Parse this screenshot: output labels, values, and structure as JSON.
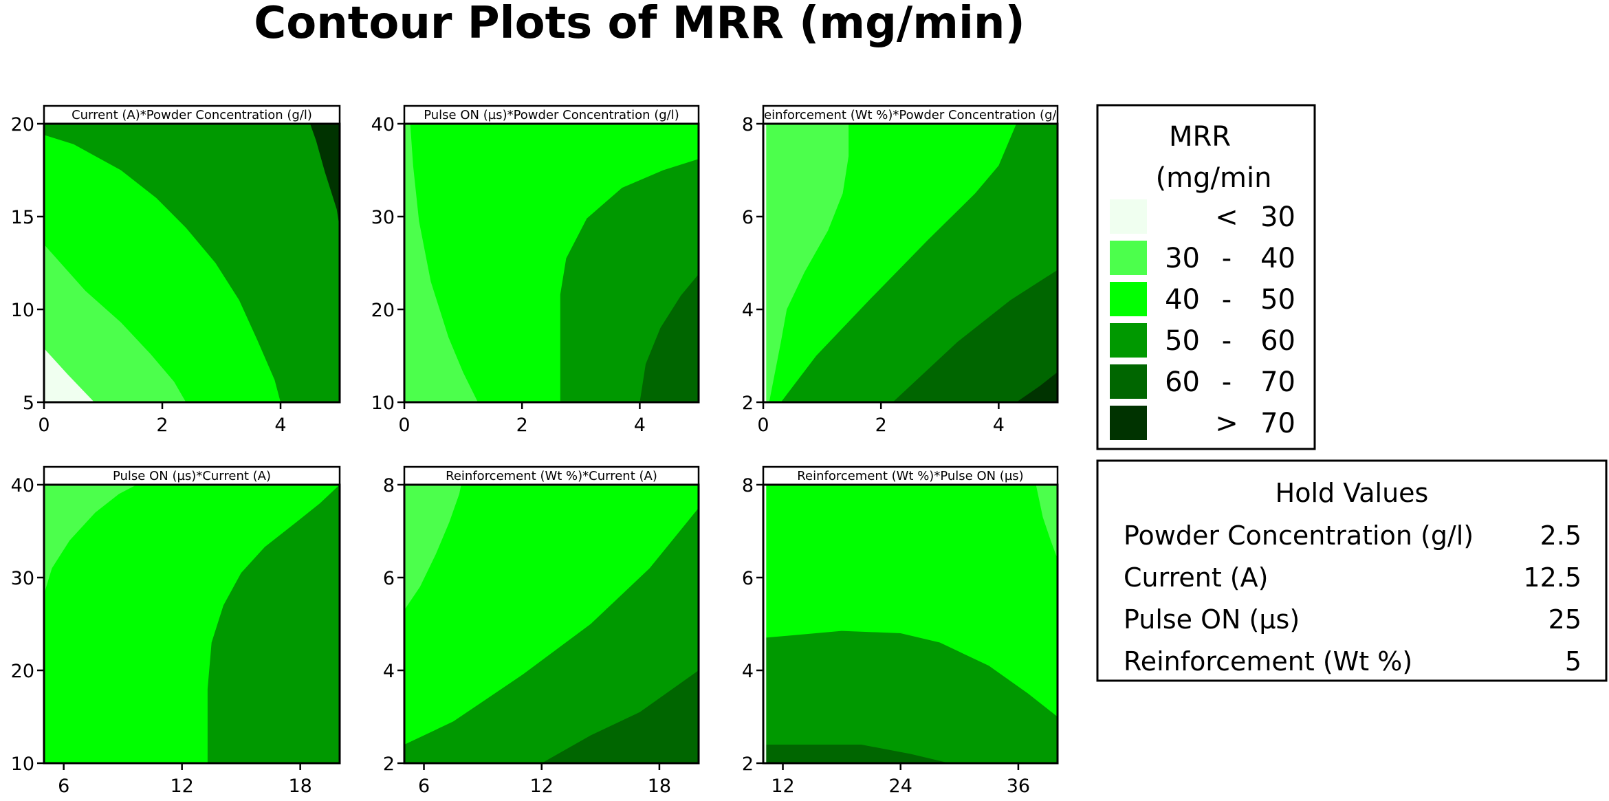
{
  "title": "Contour Plots of MRR (mg/min)",
  "colors": {
    "lt30": "#f0fff0",
    "b30_40": "#4cff4c",
    "b40_50": "#00ff00",
    "b50_60": "#009900",
    "b60_70": "#006600",
    "gt70": "#003300"
  },
  "legend": {
    "title_line1": "MRR",
    "title_line2": "(mg/min",
    "items": [
      {
        "key": "lt30",
        "from": "",
        "sep": "<",
        "to": "30"
      },
      {
        "key": "b30_40",
        "from": "30",
        "sep": "-",
        "to": "40"
      },
      {
        "key": "b40_50",
        "from": "40",
        "sep": "-",
        "to": "50"
      },
      {
        "key": "b50_60",
        "from": "50",
        "sep": "-",
        "to": "60"
      },
      {
        "key": "b60_70",
        "from": "60",
        "sep": "-",
        "to": "70"
      },
      {
        "key": "gt70",
        "from": "",
        "sep": ">",
        "to": "70"
      }
    ]
  },
  "hold_values": {
    "title": "Hold Values",
    "items": [
      {
        "label": "Powder Concentration (g/l)",
        "value": "2.5"
      },
      {
        "label": "Current (A)",
        "value": "12.5"
      },
      {
        "label": "Pulse ON (µs)",
        "value": "25"
      },
      {
        "label": "Reinforcement (Wt %)",
        "value": "5"
      }
    ]
  },
  "chart_data": [
    {
      "type": "contour",
      "title": "Current (A)*Powder Concentration (g/l)",
      "xlim": [
        0,
        5
      ],
      "ylim": [
        5,
        20
      ],
      "xticks": [
        0,
        2,
        4
      ],
      "yticks": [
        5,
        10,
        15,
        20
      ],
      "regions": [
        {
          "band": "b50_60",
          "points": [
            [
              0,
              5
            ],
            [
              5,
              5
            ],
            [
              5,
              20
            ],
            [
              0,
              20
            ]
          ]
        },
        {
          "band": "gt70",
          "points": [
            [
              4.5,
              20
            ],
            [
              5,
              20
            ],
            [
              5,
              14.4
            ],
            [
              4.95,
              15.4
            ],
            [
              4.75,
              17.4
            ],
            [
              4.6,
              19.1
            ]
          ]
        },
        {
          "band": "b40_50",
          "points": [
            [
              0,
              5
            ],
            [
              4,
              5
            ],
            [
              3.9,
              6.2
            ],
            [
              3.6,
              8.4
            ],
            [
              3.3,
              10.5
            ],
            [
              2.9,
              12.5
            ],
            [
              2.4,
              14.4
            ],
            [
              1.9,
              16
            ],
            [
              1.3,
              17.5
            ],
            [
              0.5,
              18.9
            ],
            [
              0,
              19.4
            ]
          ]
        },
        {
          "band": "b30_40",
          "points": [
            [
              0,
              5
            ],
            [
              2.4,
              5
            ],
            [
              2.2,
              6.1
            ],
            [
              1.8,
              7.6
            ],
            [
              1.3,
              9.3
            ],
            [
              0.7,
              11
            ],
            [
              0,
              13.5
            ]
          ]
        },
        {
          "band": "lt30",
          "points": [
            [
              0,
              5
            ],
            [
              0.85,
              5
            ],
            [
              0.7,
              5.5
            ],
            [
              0.4,
              6.5
            ],
            [
              0,
              7.9
            ]
          ]
        }
      ]
    },
    {
      "type": "contour",
      "title": "Pulse ON (µs)*Powder Concentration (g/l)",
      "xlim": [
        0,
        5
      ],
      "ylim": [
        10,
        40
      ],
      "xticks": [
        0,
        2,
        4
      ],
      "yticks": [
        10,
        20,
        30,
        40
      ],
      "regions": [
        {
          "band": "b40_50",
          "points": [
            [
              0,
              10
            ],
            [
              5,
              10
            ],
            [
              5,
              40
            ],
            [
              0,
              40
            ]
          ]
        },
        {
          "band": "b50_60",
          "points": [
            [
              2.65,
              10
            ],
            [
              5,
              10
            ],
            [
              5,
              36.2
            ],
            [
              4.4,
              35
            ],
            [
              3.7,
              33.1
            ],
            [
              3.1,
              29.8
            ],
            [
              2.75,
              25.5
            ],
            [
              2.65,
              21.6
            ]
          ]
        },
        {
          "band": "b60_70",
          "points": [
            [
              4,
              10
            ],
            [
              5,
              10
            ],
            [
              5,
              23.8
            ],
            [
              4.7,
              21.5
            ],
            [
              4.35,
              18
            ],
            [
              4.1,
              14.1
            ]
          ]
        },
        {
          "band": "b30_40",
          "points": [
            [
              0,
              10
            ],
            [
              1.25,
              10
            ],
            [
              1,
              13.2
            ],
            [
              0.75,
              17
            ],
            [
              0.45,
              23
            ],
            [
              0.25,
              29.5
            ],
            [
              0.15,
              35.5
            ],
            [
              0.1,
              40
            ],
            [
              0,
              40
            ]
          ]
        }
      ]
    },
    {
      "type": "contour",
      "title": "Reinforcement (Wt %)*Powder Concentration (g/l)",
      "xlim": [
        0,
        5
      ],
      "ylim": [
        2,
        8
      ],
      "xticks": [
        0,
        2,
        4
      ],
      "yticks": [
        2,
        4,
        6,
        8
      ],
      "regions": [
        {
          "band": "b40_50",
          "points": [
            [
              0,
              2
            ],
            [
              5,
              2
            ],
            [
              5,
              8
            ],
            [
              0,
              8
            ]
          ]
        },
        {
          "band": "b50_60",
          "points": [
            [
              0.3,
              2
            ],
            [
              5,
              2
            ],
            [
              5,
              8
            ],
            [
              4.3,
              8
            ],
            [
              4,
              7.1
            ],
            [
              3.6,
              6.5
            ],
            [
              2.8,
              5.5
            ],
            [
              1.8,
              4.2
            ],
            [
              0.9,
              3
            ]
          ]
        },
        {
          "band": "b60_70",
          "points": [
            [
              2.2,
              2
            ],
            [
              5,
              2
            ],
            [
              5,
              4.85
            ],
            [
              4.2,
              4.2
            ],
            [
              3.3,
              3.3
            ]
          ]
        },
        {
          "band": "gt70",
          "points": [
            [
              4.3,
              2
            ],
            [
              5,
              2
            ],
            [
              5,
              2.65
            ],
            [
              4.7,
              2.35
            ]
          ]
        },
        {
          "band": "b30_40",
          "points": [
            [
              0,
              2
            ],
            [
              0.1,
              2
            ],
            [
              0.3,
              3.3
            ],
            [
              0.4,
              4
            ],
            [
              0.7,
              4.8
            ],
            [
              1.1,
              5.7
            ],
            [
              1.35,
              6.5
            ],
            [
              1.45,
              7.3
            ],
            [
              1.45,
              8
            ],
            [
              0,
              8
            ]
          ]
        },
        {
          "band": "lt30",
          "points": [
            [
              0,
              2
            ],
            [
              0.05,
              2
            ],
            [
              0.05,
              8
            ],
            [
              0,
              8
            ]
          ]
        }
      ]
    },
    {
      "type": "contour",
      "title": "Pulse ON (µs)*Current (A)",
      "xlim": [
        5,
        20
      ],
      "ylim": [
        10,
        40
      ],
      "xticks": [
        6,
        12,
        18
      ],
      "yticks": [
        10,
        20,
        30,
        40
      ],
      "regions": [
        {
          "band": "b40_50",
          "points": [
            [
              5,
              10
            ],
            [
              20,
              10
            ],
            [
              20,
              40
            ],
            [
              5,
              40
            ]
          ]
        },
        {
          "band": "b50_60",
          "points": [
            [
              13.3,
              10
            ],
            [
              20,
              10
            ],
            [
              20,
              40
            ],
            [
              19,
              38
            ],
            [
              17.7,
              35.8
            ],
            [
              16.2,
              33.3
            ],
            [
              15,
              30.5
            ],
            [
              14.1,
              27
            ],
            [
              13.5,
              23
            ],
            [
              13.3,
              18
            ]
          ]
        },
        {
          "band": "b30_40",
          "points": [
            [
              5,
              28.2
            ],
            [
              5.4,
              31
            ],
            [
              6.3,
              34
            ],
            [
              7.6,
              37
            ],
            [
              8.8,
              39
            ],
            [
              9.7,
              40
            ],
            [
              5,
              40
            ]
          ]
        }
      ]
    },
    {
      "type": "contour",
      "title": "Reinforcement (Wt %)*Current (A)",
      "xlim": [
        5,
        20
      ],
      "ylim": [
        2,
        8
      ],
      "xticks": [
        6,
        12,
        18
      ],
      "yticks": [
        2,
        4,
        6,
        8
      ],
      "regions": [
        {
          "band": "b40_50",
          "points": [
            [
              5,
              2
            ],
            [
              20,
              2
            ],
            [
              20,
              8
            ],
            [
              5,
              8
            ]
          ]
        },
        {
          "band": "b50_60",
          "points": [
            [
              5,
              2
            ],
            [
              20,
              2
            ],
            [
              20,
              7.5
            ],
            [
              17.5,
              6.2
            ],
            [
              14.5,
              5
            ],
            [
              11,
              3.9
            ],
            [
              7.5,
              2.9
            ],
            [
              5,
              2.4
            ]
          ]
        },
        {
          "band": "b60_70",
          "points": [
            [
              12,
              2
            ],
            [
              20,
              2
            ],
            [
              20,
              4
            ],
            [
              17,
              3.1
            ],
            [
              14.5,
              2.6
            ]
          ]
        },
        {
          "band": "b30_40",
          "points": [
            [
              5,
              5.3
            ],
            [
              5.8,
              5.8
            ],
            [
              6.6,
              6.5
            ],
            [
              7.3,
              7.2
            ],
            [
              7.8,
              7.8
            ],
            [
              7.9,
              8
            ],
            [
              5,
              8
            ]
          ]
        }
      ]
    },
    {
      "type": "contour",
      "title": "Reinforcement (Wt %)*Pulse ON (µs)",
      "xlim": [
        10,
        40
      ],
      "ylim": [
        2,
        8
      ],
      "xticks": [
        12,
        24,
        36
      ],
      "yticks": [
        2,
        4,
        6,
        8
      ],
      "regions": [
        {
          "band": "b40_50",
          "points": [
            [
              10,
              2
            ],
            [
              40,
              2
            ],
            [
              40,
              8
            ],
            [
              10,
              8
            ]
          ]
        },
        {
          "band": "b50_60",
          "points": [
            [
              10,
              2
            ],
            [
              40,
              2
            ],
            [
              40,
              3
            ],
            [
              37,
              3.5
            ],
            [
              33,
              4.1
            ],
            [
              28,
              4.6
            ],
            [
              24,
              4.8
            ],
            [
              18,
              4.85
            ],
            [
              10,
              4.7
            ]
          ]
        },
        {
          "band": "b60_70",
          "points": [
            [
              10,
              2
            ],
            [
              29,
              2
            ],
            [
              25,
              2.2
            ],
            [
              20,
              2.4
            ],
            [
              10,
              2.4
            ]
          ]
        },
        {
          "band": "b30_40",
          "points": [
            [
              37.8,
              8
            ],
            [
              40,
              8
            ],
            [
              40,
              6.4
            ],
            [
              39.3,
              6.8
            ],
            [
              38.5,
              7.3
            ]
          ]
        },
        {
          "band": "lt30",
          "points": [
            [
              10,
              2
            ],
            [
              10.3,
              2
            ],
            [
              10.3,
              8
            ],
            [
              10,
              8
            ]
          ]
        }
      ]
    }
  ]
}
